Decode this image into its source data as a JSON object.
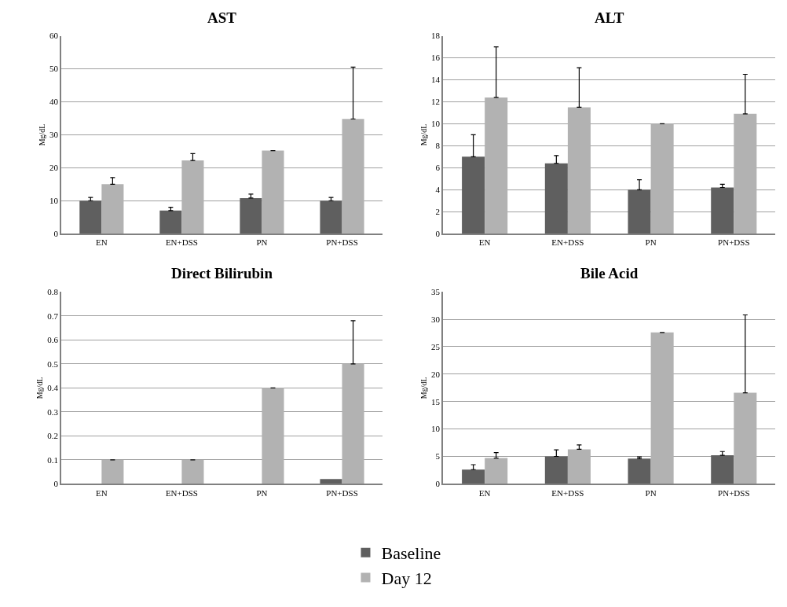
{
  "chart_data": [
    {
      "type": "bar",
      "title": "AST",
      "ylabel": "Mg/dL",
      "categories": [
        "EN",
        "EN+DSS",
        "PN",
        "PN+DSS"
      ],
      "ylim": [
        0,
        60
      ],
      "yticks": [
        0,
        10,
        20,
        30,
        40,
        50,
        60
      ],
      "grid": "y",
      "legend": "bottom",
      "series": [
        {
          "name": "Baseline",
          "color": "#5f5f5f",
          "values": [
            10,
            7,
            10.8,
            10
          ],
          "errors": [
            [
              10,
              11
            ],
            [
              7,
              8
            ],
            [
              10.8,
              12
            ],
            [
              10,
              11
            ]
          ]
        },
        {
          "name": "Day 12",
          "color": "#b2b2b2",
          "values": [
            15,
            22.2,
            25.2,
            34.8
          ],
          "errors": [
            [
              15,
              17
            ],
            [
              22.2,
              24.3
            ],
            null,
            [
              34.8,
              50.5
            ]
          ]
        }
      ]
    },
    {
      "type": "bar",
      "title": "ALT",
      "ylabel": "Mg/dL",
      "categories": [
        "EN",
        "EN+DSS",
        "PN",
        "PN+DSS"
      ],
      "ylim": [
        0,
        18
      ],
      "yticks": [
        0,
        2,
        4,
        6,
        8,
        10,
        12,
        14,
        16,
        18
      ],
      "grid": "y",
      "series": [
        {
          "name": "Baseline",
          "color": "#5f5f5f",
          "values": [
            7,
            6.4,
            4,
            4.2
          ],
          "errors": [
            [
              7,
              9
            ],
            [
              6.4,
              7.1
            ],
            [
              4,
              4.9
            ],
            [
              4.2,
              4.5
            ]
          ]
        },
        {
          "name": "Day 12",
          "color": "#b2b2b2",
          "values": [
            12.4,
            11.5,
            10,
            10.9
          ],
          "errors": [
            [
              12.4,
              17
            ],
            [
              11.5,
              15.1
            ],
            null,
            [
              10.9,
              14.5
            ]
          ]
        }
      ]
    },
    {
      "type": "bar",
      "title": "Direct Bilirubin",
      "ylabel": "Mg/dL",
      "categories": [
        "EN",
        "EN+DSS",
        "PN",
        "PN+DSS"
      ],
      "ylim": [
        0,
        0.8
      ],
      "yticks": [
        0,
        0.1,
        0.2,
        0.3,
        0.4,
        0.5,
        0.6,
        0.7,
        0.8
      ],
      "grid": "y",
      "series": [
        {
          "name": "Baseline",
          "color": "#5f5f5f",
          "values": [
            0,
            0,
            0,
            0.02
          ]
        },
        {
          "name": "Day 12",
          "color": "#b2b2b2",
          "values": [
            0.1,
            0.1,
            0.4,
            0.5
          ],
          "errors": [
            null,
            null,
            null,
            [
              0.5,
              0.68
            ]
          ]
        }
      ]
    },
    {
      "type": "bar",
      "title": "Bile Acid",
      "ylabel": "Mg/dL",
      "categories": [
        "EN",
        "EN+DSS",
        "PN",
        "PN+DSS"
      ],
      "ylim": [
        0,
        35
      ],
      "yticks": [
        0,
        5,
        10,
        15,
        20,
        25,
        30,
        35
      ],
      "grid": "y",
      "series": [
        {
          "name": "Baseline",
          "color": "#5f5f5f",
          "values": [
            2.6,
            5,
            4.6,
            5.2
          ],
          "errors": [
            [
              2.6,
              3.5
            ],
            [
              5,
              6.2
            ],
            [
              4.6,
              4.9
            ],
            [
              5.2,
              5.9
            ]
          ]
        },
        {
          "name": "Day 12",
          "color": "#b2b2b2",
          "values": [
            4.7,
            6.3,
            27.6,
            16.6
          ],
          "errors": [
            [
              4.7,
              5.7
            ],
            [
              6.3,
              7.1
            ],
            null,
            [
              16.6,
              30.8
            ]
          ]
        }
      ]
    }
  ]
}
